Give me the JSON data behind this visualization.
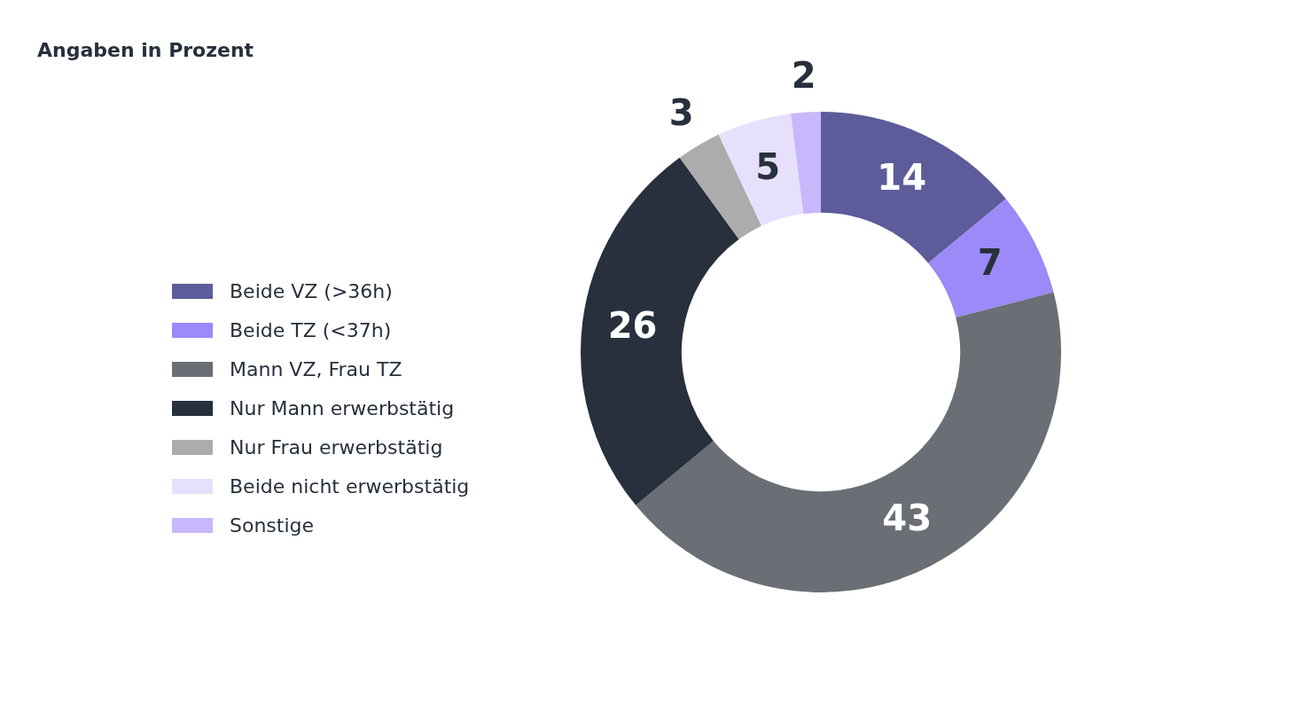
{
  "chart_data": {
    "type": "donut",
    "title": "Angaben in Prozent",
    "categories": [
      "Beide VZ (>36h)",
      "Beide TZ (<37h)",
      "Mann VZ, Frau TZ",
      "Nur Mann erwerbstätig",
      "Nur Frau erwerbstätig",
      "Beide nicht erwerbstätig",
      "Sonstige"
    ],
    "values": [
      14,
      7,
      43,
      26,
      3,
      5,
      2
    ],
    "colors": [
      "#5c5c9a",
      "#9b8af8",
      "#6a6e75",
      "#27303c",
      "#acacac",
      "#e7e0fc",
      "#c8b7fb"
    ],
    "data_labels": true,
    "legend": "left"
  }
}
